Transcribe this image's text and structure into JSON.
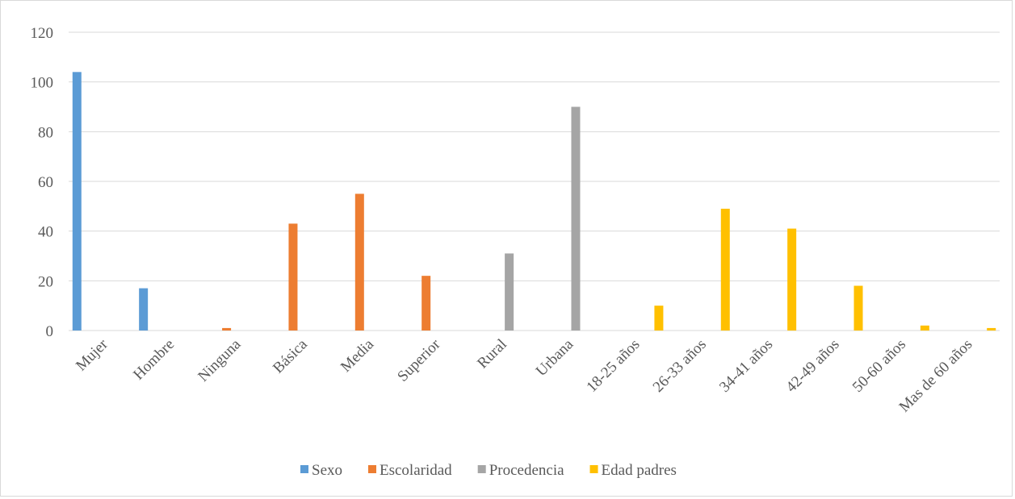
{
  "chart_data": {
    "type": "bar",
    "categories": [
      "Mujer",
      "Hombre",
      "Ninguna",
      "Básica",
      "Media",
      "Superior",
      "Rural",
      "Urbana",
      "18-25 años",
      "26-33 años",
      "34-41 años",
      "42-49 años",
      "50-60 años",
      "Mas de 60 años"
    ],
    "series": [
      {
        "name": "Sexo",
        "color": "#5b9bd5",
        "values": [
          104,
          17,
          null,
          null,
          null,
          null,
          null,
          null,
          null,
          null,
          null,
          null,
          null,
          null
        ]
      },
      {
        "name": "Escolaridad",
        "color": "#ed7d31",
        "values": [
          null,
          null,
          1,
          43,
          55,
          22,
          null,
          null,
          null,
          null,
          null,
          null,
          null,
          null
        ]
      },
      {
        "name": "Procedencia",
        "color": "#a5a5a5",
        "values": [
          null,
          null,
          null,
          null,
          null,
          null,
          31,
          90,
          null,
          null,
          null,
          null,
          null,
          null
        ]
      },
      {
        "name": "Edad padres",
        "color": "#ffc000",
        "values": [
          null,
          null,
          null,
          null,
          null,
          null,
          null,
          null,
          10,
          49,
          41,
          18,
          2,
          1
        ]
      }
    ],
    "yticks": [
      0,
      20,
      40,
      60,
      80,
      100,
      120
    ],
    "ylim": [
      0,
      120
    ],
    "grid": true,
    "legend_position": "bottom"
  }
}
